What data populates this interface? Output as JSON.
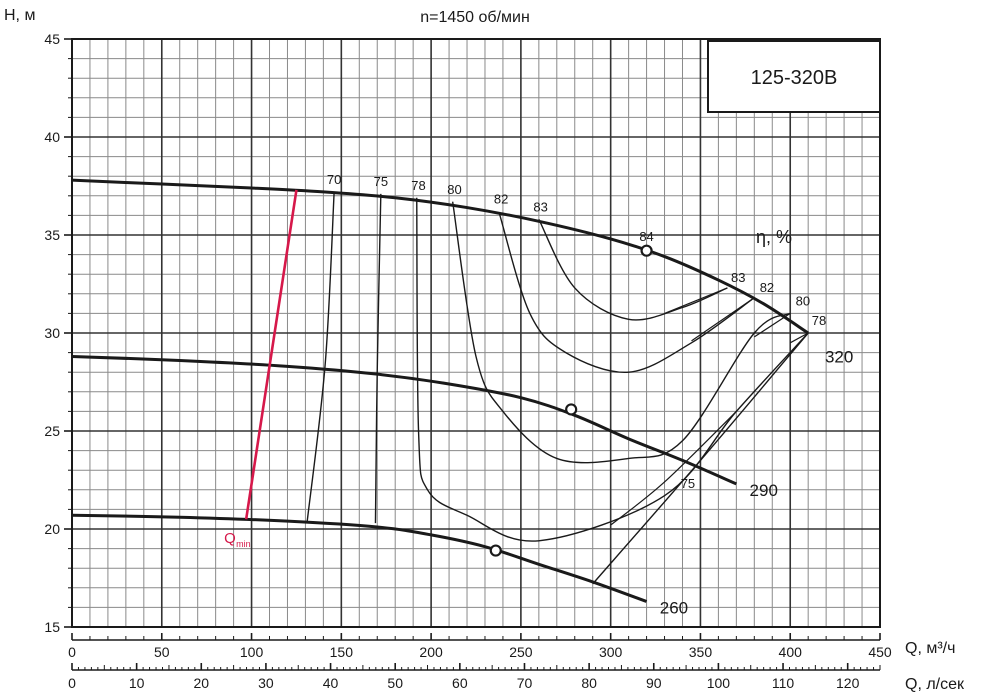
{
  "chart_data": {
    "type": "line",
    "title": "n=1450 об/мин",
    "model_label": "125-320B",
    "xlabel": "Q, м³/ч",
    "x2label": "Q, л/сек",
    "ylabel": "H, м",
    "xlim": [
      0,
      450
    ],
    "ylim": [
      15,
      45
    ],
    "x_ticks": [
      0,
      50,
      100,
      150,
      200,
      250,
      300,
      350,
      400,
      450
    ],
    "x2_ticks": [
      0,
      10,
      20,
      30,
      40,
      50,
      60,
      70,
      80,
      90,
      100,
      110,
      120
    ],
    "y_ticks": [
      15,
      20,
      25,
      30,
      35,
      40,
      45
    ],
    "grid": true,
    "efficiency_title": "η, %",
    "series": [
      {
        "name": "320",
        "x": [
          0,
          50,
          100,
          140,
          180,
          220,
          260,
          300,
          330,
          360,
          385,
          410
        ],
        "y": [
          37.8,
          37.6,
          37.4,
          37.2,
          36.9,
          36.4,
          35.7,
          34.8,
          33.9,
          32.7,
          31.5,
          30.0
        ],
        "bep": [
          320,
          34.2
        ]
      },
      {
        "name": "290",
        "x": [
          0,
          60,
          120,
          170,
          210,
          250,
          280,
          310,
          340,
          370
        ],
        "y": [
          28.8,
          28.6,
          28.3,
          27.9,
          27.4,
          26.7,
          25.8,
          24.6,
          23.5,
          22.3
        ],
        "bep": [
          278,
          26.1
        ]
      },
      {
        "name": "260",
        "x": [
          0,
          60,
          120,
          170,
          200,
          230,
          260,
          290,
          320
        ],
        "y": [
          20.7,
          20.6,
          20.4,
          20.1,
          19.7,
          19.1,
          18.2,
          17.3,
          16.3
        ],
        "bep": [
          236,
          18.9
        ]
      }
    ],
    "efficiency_curves": [
      {
        "label": "70",
        "points": [
          [
            146,
            37.2
          ],
          [
            141,
            28.4
          ],
          [
            131,
            20.4
          ]
        ]
      },
      {
        "label": "75",
        "points": [
          [
            172,
            37.1
          ],
          [
            170,
            28.1
          ],
          [
            169,
            20.3
          ]
        ]
      },
      {
        "label": "78",
        "points": [
          [
            192,
            36.9
          ],
          [
            193,
            25
          ],
          [
            198,
            22
          ],
          [
            220,
            20.7
          ],
          [
            260,
            19.4
          ],
          [
            330,
            21.7
          ],
          [
            370,
            26
          ],
          [
            410,
            30
          ]
        ]
      },
      {
        "label": "80",
        "points": [
          [
            212,
            36.7
          ],
          [
            225,
            28.8
          ],
          [
            240,
            26
          ],
          [
            270,
            23.6
          ],
          [
            310,
            23.6
          ],
          [
            340,
            24.5
          ],
          [
            380,
            30
          ],
          [
            400,
            31
          ]
        ]
      },
      {
        "label": "82",
        "points": [
          [
            238,
            36.1
          ],
          [
            255,
            31
          ],
          [
            275,
            29
          ],
          [
            310,
            28
          ],
          [
            345,
            29.5
          ],
          [
            380,
            31.8
          ]
        ]
      },
      {
        "label": "83",
        "points": [
          [
            260,
            35.8
          ],
          [
            280,
            32.3
          ],
          [
            310,
            30.7
          ],
          [
            340,
            31.3
          ],
          [
            365,
            32.3
          ]
        ]
      },
      {
        "label": "84",
        "points": [
          [
            320,
            34.2
          ]
        ]
      }
    ],
    "efficiency_labels_right": [
      "83",
      "82",
      "80",
      "78"
    ],
    "efficiency_label_lower": "75",
    "qmin": {
      "label_main": "Q",
      "label_sub": "min",
      "points": [
        [
          125,
          37.3
        ],
        [
          97,
          20.5
        ]
      ]
    }
  }
}
